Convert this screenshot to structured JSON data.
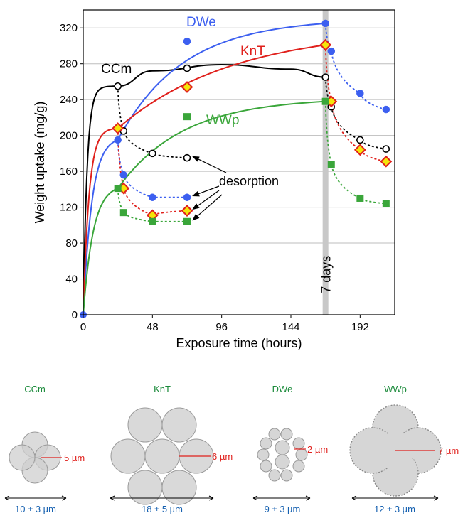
{
  "chart_data": {
    "type": "line",
    "xlabel": "Exposure time (hours)",
    "ylabel": "Weight uptake (mg/g)",
    "xlim": [
      0,
      216
    ],
    "ylim": [
      0,
      340
    ],
    "xticks": [
      0,
      48,
      96,
      144,
      192
    ],
    "yticks": [
      0,
      40,
      80,
      120,
      160,
      200,
      240,
      280,
      320
    ],
    "grid": "horizontal",
    "marker_line": {
      "x": 168,
      "label": "7 days"
    },
    "annotation": "desorption",
    "series": [
      {
        "name": "CCm",
        "color": "#000000",
        "marker": "open-circle",
        "sorption": [
          [
            0,
            0
          ],
          [
            24,
            255
          ],
          [
            72,
            275
          ],
          [
            168,
            265
          ]
        ],
        "desorption_1": [
          [
            24,
            255
          ],
          [
            28,
            205
          ],
          [
            48,
            180
          ],
          [
            72,
            175
          ]
        ],
        "desorption_2": [
          [
            168,
            265
          ],
          [
            172,
            232
          ],
          [
            192,
            195
          ],
          [
            210,
            185
          ]
        ]
      },
      {
        "name": "DWe",
        "color": "#3c5ff0",
        "marker": "filled-circle",
        "sorption": [
          [
            0,
            0
          ],
          [
            24,
            195
          ],
          [
            72,
            305
          ],
          [
            168,
            325
          ]
        ],
        "desorption_1": [
          [
            24,
            195
          ],
          [
            28,
            156
          ],
          [
            48,
            131
          ],
          [
            72,
            131
          ]
        ],
        "desorption_2": [
          [
            168,
            325
          ],
          [
            172,
            294
          ],
          [
            192,
            247
          ],
          [
            210,
            229
          ]
        ]
      },
      {
        "name": "KnT",
        "color": "#e0201c",
        "marker": "diamond",
        "sorption": [
          [
            0,
            0
          ],
          [
            24,
            208
          ],
          [
            72,
            254
          ],
          [
            168,
            301
          ]
        ],
        "desorption_1": [
          [
            24,
            208
          ],
          [
            28,
            141
          ],
          [
            48,
            111
          ],
          [
            72,
            116
          ]
        ],
        "desorption_2": [
          [
            168,
            301
          ],
          [
            172,
            238
          ],
          [
            192,
            184
          ],
          [
            210,
            171
          ]
        ]
      },
      {
        "name": "WWp",
        "color": "#3aa63a",
        "marker": "filled-square",
        "sorption": [
          [
            0,
            0
          ],
          [
            24,
            141
          ],
          [
            72,
            221
          ],
          [
            168,
            238
          ]
        ],
        "desorption_1": [
          [
            24,
            141
          ],
          [
            28,
            114
          ],
          [
            48,
            104
          ],
          [
            72,
            104
          ]
        ],
        "desorption_2": [
          [
            168,
            238
          ],
          [
            172,
            168
          ],
          [
            192,
            130
          ],
          [
            210,
            124
          ]
        ]
      }
    ]
  },
  "fibers": [
    {
      "name": "CCm",
      "radius": "5 µm",
      "diameter": "10 ± 3 µm"
    },
    {
      "name": "KnT",
      "radius": "6 µm",
      "diameter": "18 ± 5 µm"
    },
    {
      "name": "DWe",
      "radius": "2 µm",
      "diameter": "9 ± 3 µm"
    },
    {
      "name": "WWp",
      "radius": "7 µm",
      "diameter": "12 ± 3 µm"
    }
  ]
}
